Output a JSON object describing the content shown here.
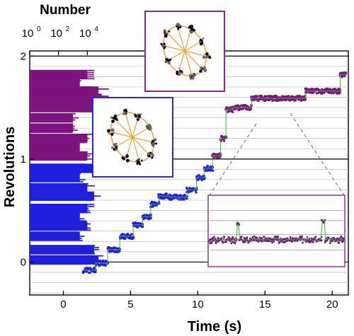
{
  "chart_data": {
    "type": "line",
    "xlabel": "Time (s)",
    "ylabel": "Revolutions",
    "top_axis_label": "Number",
    "xlim": [
      -2.5,
      21.2
    ],
    "ylim": [
      -0.32,
      2.05
    ],
    "x_ticks": [
      {
        "value": 0,
        "label": "0"
      },
      {
        "value": 5,
        "label": "5"
      },
      {
        "value": 10,
        "label": "10"
      },
      {
        "value": 15,
        "label": "15"
      },
      {
        "value": 20,
        "label": "20"
      }
    ],
    "y_ticks": [
      {
        "value": 0,
        "label": "0"
      },
      {
        "value": 1,
        "label": "1"
      },
      {
        "value": 2,
        "label": "2"
      }
    ],
    "top_ticks": [
      {
        "base": "10",
        "exp": "0"
      },
      {
        "base": "10",
        "exp": "2"
      },
      {
        "base": "10",
        "exp": "4"
      }
    ],
    "colors": {
      "first_revolution": "#1f1fdc",
      "second_revolution": "#7d1480",
      "fit_line": "#3fae3f",
      "inset_border_blue": "#2a2ad0",
      "inset_border_purple": "#8a2a8e",
      "gridline": "#b8b8b8",
      "orange_spokes": "#f0a030"
    },
    "gridlines_per_revolution": 10,
    "steps": [
      {
        "t0": 1.5,
        "t1": 2.4,
        "rev": -0.08
      },
      {
        "t0": 2.4,
        "t1": 3.3,
        "rev": -0.01
      },
      {
        "t0": 3.3,
        "t1": 4.2,
        "rev": 0.12
      },
      {
        "t0": 4.2,
        "t1": 5.2,
        "rev": 0.25
      },
      {
        "t0": 5.2,
        "t1": 5.9,
        "rev": 0.36
      },
      {
        "t0": 5.9,
        "t1": 6.5,
        "rev": 0.44
      },
      {
        "t0": 6.5,
        "t1": 7.1,
        "rev": 0.56
      },
      {
        "t0": 7.1,
        "t1": 7.9,
        "rev": 0.64
      },
      {
        "t0": 7.9,
        "t1": 9.2,
        "rev": 0.63
      },
      {
        "t0": 9.2,
        "t1": 9.9,
        "rev": 0.7
      },
      {
        "t0": 9.9,
        "t1": 10.5,
        "rev": 0.82
      },
      {
        "t0": 10.5,
        "t1": 11.1,
        "rev": 0.91
      },
      {
        "t0": 11.1,
        "t1": 11.7,
        "rev": 1.03
      },
      {
        "t0": 11.7,
        "t1": 12.1,
        "rev": 1.2
      },
      {
        "t0": 12.1,
        "t1": 12.6,
        "rev": 1.48
      },
      {
        "t0": 12.6,
        "t1": 14.0,
        "rev": 1.5
      },
      {
        "t0": 14.0,
        "t1": 18.0,
        "rev": 1.59
      },
      {
        "t0": 18.0,
        "t1": 20.6,
        "rev": 1.66
      },
      {
        "t0": 20.6,
        "t1": 21.0,
        "rev": 1.82
      }
    ],
    "histogram_first_revolution": [
      {
        "rev": 0.02,
        "count": 60000.0
      },
      {
        "rev": 0.12,
        "count": 30000.0
      },
      {
        "rev": 0.25,
        "count": 3000.0
      },
      {
        "rev": 0.35,
        "count": 10000.0
      },
      {
        "rev": 0.44,
        "count": 3000.0
      },
      {
        "rev": 0.52,
        "count": 10000.0
      },
      {
        "rev": 0.64,
        "count": 30000.0
      },
      {
        "rev": 0.72,
        "count": 10000.0
      },
      {
        "rev": 0.82,
        "count": 3000.0
      },
      {
        "rev": 0.91,
        "count": 30000.0
      }
    ],
    "histogram_second_revolution": [
      {
        "rev": 1.03,
        "count": 10000.0
      },
      {
        "rev": 1.12,
        "count": 3000.0
      },
      {
        "rev": 1.2,
        "count": 10000.0
      },
      {
        "rev": 1.3,
        "count": 1000.0
      },
      {
        "rev": 1.4,
        "count": 1000.0
      },
      {
        "rev": 1.5,
        "count": 60000.0
      },
      {
        "rev": 1.59,
        "count": 100000.0
      },
      {
        "rev": 1.66,
        "count": 60000.0
      },
      {
        "rev": 1.74,
        "count": 3000.0
      },
      {
        "rev": 1.82,
        "count": 10000.0
      }
    ]
  }
}
